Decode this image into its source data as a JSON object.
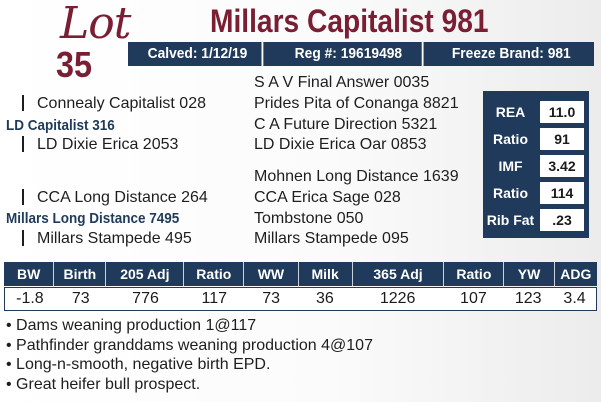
{
  "lot": {
    "label": "Lot",
    "number": "35"
  },
  "title": "Millars Capitalist 981",
  "info_bar": {
    "calved": "Calved: 1/12/19",
    "reg": "Reg #: 19619498",
    "freeze_brand": "Freeze Brand: 981"
  },
  "pedigree": {
    "sire_sire_sire": "S A V Final Answer 0035",
    "sire_sire": "Connealy Capitalist 028",
    "sire_sire_dam": "Prides Pita of Conanga 8821",
    "sire": "LD Capitalist 316",
    "sire_dam_sire": "C A Future Direction 5321",
    "sire_dam": "LD Dixie Erica 2053",
    "sire_dam_dam": "LD Dixie Erica Oar 0853",
    "dam_sire_sire": "Mohnen Long Distance 1639",
    "dam_sire": "CCA Long Distance 264",
    "dam_sire_dam": "CCA Erica Sage 028",
    "dam": "Millars Long Distance 7495",
    "dam_dam_sire": "Tombstone 050",
    "dam_dam": "Millars Stampede 495",
    "dam_dam_dam": "Millars Stampede 095"
  },
  "carcass": [
    {
      "label": "REA",
      "value": "11.0"
    },
    {
      "label": "Ratio",
      "value": "91"
    },
    {
      "label": "IMF",
      "value": "3.42"
    },
    {
      "label": "Ratio",
      "value": "114"
    },
    {
      "label": "Rib Fat",
      "value": ".23"
    }
  ],
  "epd_table": {
    "headers": [
      "BW",
      "Birth",
      "205 Adj",
      "Ratio",
      "WW",
      "Milk",
      "365 Adj",
      "Ratio",
      "YW",
      "ADG"
    ],
    "values": [
      "-1.8",
      "73",
      "776",
      "117",
      "73",
      "36",
      "1226",
      "107",
      "123",
      "3.4"
    ]
  },
  "notes": [
    "• Dams weaning production 1@117",
    "• Pathfinder granddams weaning production 4@107",
    "• Long-n-smooth, negative birth EPD.",
    "• Great heifer bull prospect."
  ],
  "colors": {
    "maroon": "#7a1f33",
    "navy": "#1f3a5a"
  }
}
